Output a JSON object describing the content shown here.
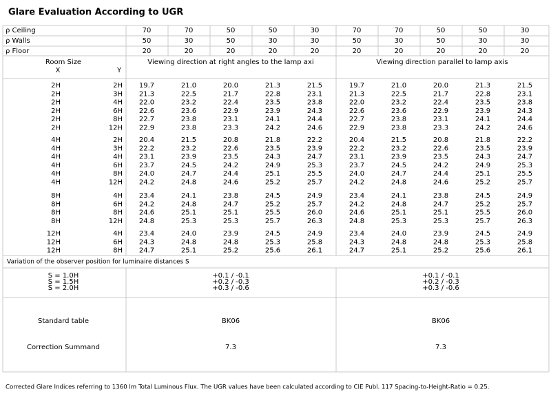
{
  "title": "Glare Evaluation According to UGR",
  "params": [
    {
      "label": "ρ Ceiling",
      "values": [
        "70",
        "70",
        "50",
        "50",
        "30",
        "70",
        "70",
        "50",
        "50",
        "30"
      ]
    },
    {
      "label": "ρ Walls",
      "values": [
        "50",
        "30",
        "50",
        "30",
        "30",
        "50",
        "30",
        "50",
        "30",
        "30"
      ]
    },
    {
      "label": "ρ Floor",
      "values": [
        "20",
        "20",
        "20",
        "20",
        "20",
        "20",
        "20",
        "20",
        "20",
        "20"
      ]
    }
  ],
  "header": {
    "room_size": "Room Size",
    "x": "X",
    "y": "Y",
    "direction_left": "Viewing direction at right angles to the lamp axi",
    "direction_right": "Viewing direction parallel to lamp axis"
  },
  "groups": [
    [
      {
        "x": "2H",
        "y": "2H",
        "left": [
          "19.7",
          "21.0",
          "20.0",
          "21.3",
          "21.5"
        ],
        "right": [
          "19.7",
          "21.0",
          "20.0",
          "21.3",
          "21.5"
        ]
      },
      {
        "x": "2H",
        "y": "3H",
        "left": [
          "21.3",
          "22.5",
          "21.7",
          "22.8",
          "23.1"
        ],
        "right": [
          "21.3",
          "22.5",
          "21.7",
          "22.8",
          "23.1"
        ]
      },
      {
        "x": "2H",
        "y": "4H",
        "left": [
          "22.0",
          "23.2",
          "22.4",
          "23.5",
          "23.8"
        ],
        "right": [
          "22.0",
          "23.2",
          "22.4",
          "23.5",
          "23.8"
        ]
      },
      {
        "x": "2H",
        "y": "6H",
        "left": [
          "22.6",
          "23.6",
          "22.9",
          "23.9",
          "24.3"
        ],
        "right": [
          "22.6",
          "23.6",
          "22.9",
          "23.9",
          "24.3"
        ]
      },
      {
        "x": "2H",
        "y": "8H",
        "left": [
          "22.7",
          "23.8",
          "23.1",
          "24.1",
          "24.4"
        ],
        "right": [
          "22.7",
          "23.8",
          "23.1",
          "24.1",
          "24.4"
        ]
      },
      {
        "x": "2H",
        "y": "12H",
        "left": [
          "22.9",
          "23.8",
          "23.3",
          "24.2",
          "24.6"
        ],
        "right": [
          "22.9",
          "23.8",
          "23.3",
          "24.2",
          "24.6"
        ]
      }
    ],
    [
      {
        "x": "4H",
        "y": "2H",
        "left": [
          "20.4",
          "21.5",
          "20.8",
          "21.8",
          "22.2"
        ],
        "right": [
          "20.4",
          "21.5",
          "20.8",
          "21.8",
          "22.2"
        ]
      },
      {
        "x": "4H",
        "y": "3H",
        "left": [
          "22.2",
          "23.2",
          "22.6",
          "23.5",
          "23.9"
        ],
        "right": [
          "22.2",
          "23.2",
          "22.6",
          "23.5",
          "23.9"
        ]
      },
      {
        "x": "4H",
        "y": "4H",
        "left": [
          "23.1",
          "23.9",
          "23.5",
          "24.3",
          "24.7"
        ],
        "right": [
          "23.1",
          "23.9",
          "23.5",
          "24.3",
          "24.7"
        ]
      },
      {
        "x": "4H",
        "y": "6H",
        "left": [
          "23.7",
          "24.5",
          "24.2",
          "24.9",
          "25.3"
        ],
        "right": [
          "23.7",
          "24.5",
          "24.2",
          "24.9",
          "25.3"
        ]
      },
      {
        "x": "4H",
        "y": "8H",
        "left": [
          "24.0",
          "24.7",
          "24.4",
          "25.1",
          "25.5"
        ],
        "right": [
          "24.0",
          "24.7",
          "24.4",
          "25.1",
          "25.5"
        ]
      },
      {
        "x": "4H",
        "y": "12H",
        "left": [
          "24.2",
          "24.8",
          "24.6",
          "25.2",
          "25.7"
        ],
        "right": [
          "24.2",
          "24.8",
          "24.6",
          "25.2",
          "25.7"
        ]
      }
    ],
    [
      {
        "x": "8H",
        "y": "4H",
        "left": [
          "23.4",
          "24.1",
          "23.8",
          "24.5",
          "24.9"
        ],
        "right": [
          "23.4",
          "24.1",
          "23.8",
          "24.5",
          "24.9"
        ]
      },
      {
        "x": "8H",
        "y": "6H",
        "left": [
          "24.2",
          "24.8",
          "24.7",
          "25.2",
          "25.7"
        ],
        "right": [
          "24.2",
          "24.8",
          "24.7",
          "25.2",
          "25.7"
        ]
      },
      {
        "x": "8H",
        "y": "8H",
        "left": [
          "24.6",
          "25.1",
          "25.1",
          "25.5",
          "26.0"
        ],
        "right": [
          "24.6",
          "25.1",
          "25.1",
          "25.5",
          "26.0"
        ]
      },
      {
        "x": "8H",
        "y": "12H",
        "left": [
          "24.8",
          "25.3",
          "25.3",
          "25.7",
          "26.3"
        ],
        "right": [
          "24.8",
          "25.3",
          "25.3",
          "25.7",
          "26.3"
        ]
      }
    ],
    [
      {
        "x": "12H",
        "y": "4H",
        "left": [
          "23.4",
          "24.0",
          "23.9",
          "24.5",
          "24.9"
        ],
        "right": [
          "23.4",
          "24.0",
          "23.9",
          "24.5",
          "24.9"
        ]
      },
      {
        "x": "12H",
        "y": "6H",
        "left": [
          "24.3",
          "24.8",
          "24.8",
          "25.3",
          "25.8"
        ],
        "right": [
          "24.3",
          "24.8",
          "24.8",
          "25.3",
          "25.8"
        ]
      },
      {
        "x": "12H",
        "y": "8H",
        "left": [
          "24.7",
          "25.1",
          "25.2",
          "25.6",
          "26.1"
        ],
        "right": [
          "24.7",
          "25.1",
          "25.2",
          "25.6",
          "26.1"
        ]
      }
    ]
  ],
  "variation": {
    "label": "Variation of the observer position for luminaire distances S",
    "rows": [
      {
        "s": "S = 1.0H",
        "left": "+0.1 / -0.1",
        "right": "+0.1 / -0.1"
      },
      {
        "s": "S = 1.5H",
        "left": "+0.2 / -0.3",
        "right": "+0.2 / -0.3"
      },
      {
        "s": "S = 2.0H",
        "left": "+0.3 / -0.6",
        "right": "+0.3 / -0.6"
      }
    ]
  },
  "standard_table": {
    "label": "Standard table",
    "left": "BK06",
    "right": "BK06"
  },
  "correction": {
    "label": "Correction Summand",
    "left": "7.3",
    "right": "7.3"
  },
  "footer": "Corrected Glare Indices referring to 1360 lm Total Luminous Flux. The UGR values have been calculated according to CIE Publ. 117   Spacing-to-Height-Ratio = 0.25."
}
